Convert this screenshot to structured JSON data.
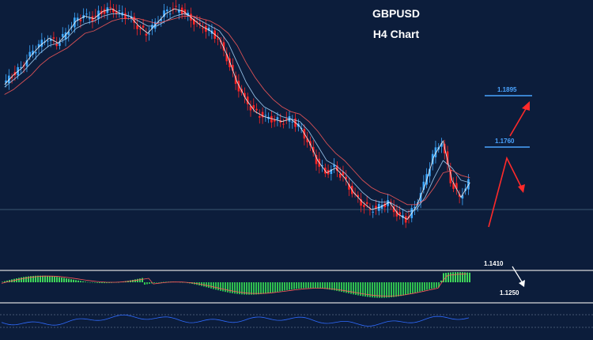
{
  "overlay": {
    "symbol": "GBPUSD",
    "timeframe": "H4 Chart"
  },
  "levels": {
    "target_high": "1.1895",
    "target_mid": "1.1760",
    "support_a": "1.1410",
    "support_b": "1.1250"
  },
  "colors": {
    "background": "#0c1d3b",
    "bull": "#3da8ff",
    "bear": "#ff2424",
    "ma_fast": "#ffffff",
    "ma_mid": "#a8d8ff",
    "ma_slow": "#ff5a5a",
    "hist_pos": "#3fd65a",
    "hist_neg": "#2fbf4f",
    "osc": "#2f6bff",
    "level_line": "#4aa3ff",
    "panel_line": "#d9d9d9",
    "arrow_red": "#ff2a2a",
    "arrow_white": "#ffffff"
  },
  "chart_data": {
    "type": "line",
    "title": "GBPUSD",
    "subtitle": "H4 Chart",
    "xlabel": "",
    "ylabel": "",
    "grid": false,
    "legend": "none",
    "ylim": [
      1.125,
      1.23
    ],
    "series": [
      {
        "values": [
          1.197,
          1.201,
          1.204,
          1.209,
          1.213,
          1.216,
          1.214,
          1.218,
          1.223,
          1.225,
          1.224,
          1.227,
          1.228,
          1.226,
          1.225,
          1.221,
          1.218,
          1.222,
          1.226,
          1.228,
          1.227,
          1.224,
          1.221,
          1.219,
          1.216,
          1.208,
          1.198,
          1.191,
          1.186,
          1.184,
          1.183,
          1.182,
          1.183,
          1.18,
          1.174,
          1.166,
          1.161,
          1.163,
          1.159,
          1.153,
          1.149,
          1.146,
          1.147,
          1.149,
          1.144,
          1.142,
          1.147,
          1.156,
          1.168,
          1.174,
          1.158,
          1.151,
          1.157
        ]
      },
      {
        "values": [
          1.196,
          1.199,
          1.202,
          1.206,
          1.21,
          1.213,
          1.214,
          1.216,
          1.22,
          1.222,
          1.223,
          1.225,
          1.226,
          1.226,
          1.225,
          1.223,
          1.221,
          1.221,
          1.223,
          1.225,
          1.226,
          1.225,
          1.223,
          1.221,
          1.219,
          1.214,
          1.206,
          1.198,
          1.192,
          1.188,
          1.186,
          1.184,
          1.183,
          1.182,
          1.178,
          1.172,
          1.166,
          1.164,
          1.161,
          1.157,
          1.153,
          1.15,
          1.149,
          1.149,
          1.147,
          1.145,
          1.146,
          1.151,
          1.159,
          1.166,
          1.163,
          1.158,
          1.157
        ]
      },
      {
        "values": [
          1.193,
          1.195,
          1.198,
          1.201,
          1.205,
          1.208,
          1.21,
          1.212,
          1.215,
          1.218,
          1.219,
          1.221,
          1.223,
          1.224,
          1.224,
          1.224,
          1.223,
          1.222,
          1.223,
          1.224,
          1.225,
          1.225,
          1.224,
          1.223,
          1.221,
          1.218,
          1.213,
          1.206,
          1.2,
          1.195,
          1.191,
          1.188,
          1.186,
          1.185,
          1.182,
          1.178,
          1.173,
          1.169,
          1.166,
          1.162,
          1.158,
          1.155,
          1.153,
          1.152,
          1.15,
          1.148,
          1.148,
          1.15,
          1.155,
          1.161,
          1.162,
          1.16,
          1.159
        ]
      }
    ]
  }
}
